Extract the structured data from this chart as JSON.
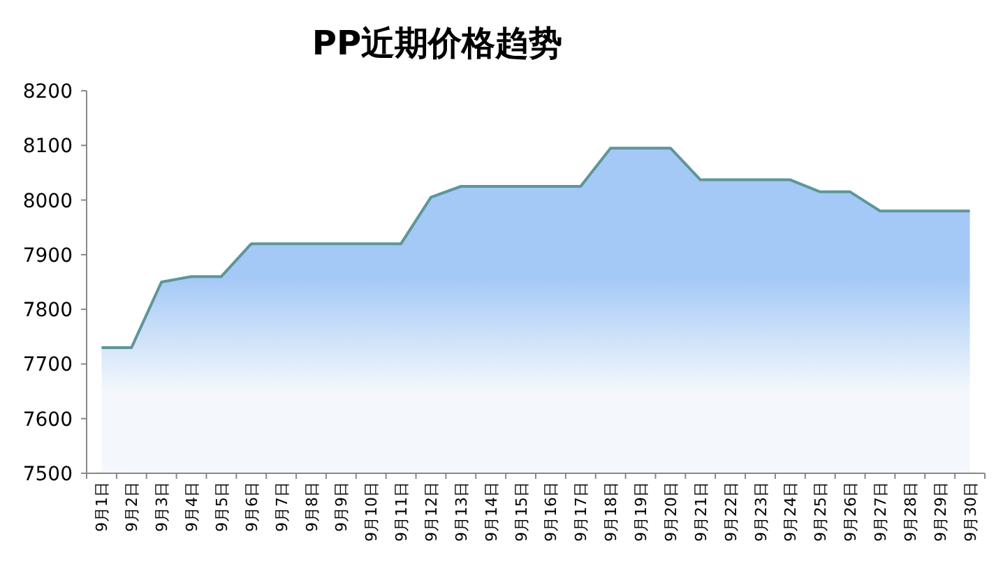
{
  "chart_data": {
    "type": "area",
    "title": "PP近期价格趋势",
    "categories": [
      "9月1日",
      "9月2日",
      "9月3日",
      "9月4日",
      "9月5日",
      "9月6日",
      "9月7日",
      "9月8日",
      "9月9日",
      "9月10日",
      "9月11日",
      "9月12日",
      "9月13日",
      "9月14日",
      "9月15日",
      "9月16日",
      "9月17日",
      "9月18日",
      "9月19日",
      "9月20日",
      "9月21日",
      "9月22日",
      "9月23日",
      "9月24日",
      "9月25日",
      "9月26日",
      "9月27日",
      "9月28日",
      "9月29日",
      "9月30日"
    ],
    "values": [
      7730,
      7730,
      7850,
      7860,
      7860,
      7920,
      7920,
      7920,
      7920,
      7920,
      7920,
      8005,
      8025,
      8025,
      8025,
      8025,
      8025,
      8095,
      8095,
      8095,
      8037,
      8037,
      8037,
      8037,
      8015,
      8015,
      7980,
      7980,
      7980,
      7980
    ],
    "color": "#a5c9f6",
    "ylim": [
      7500,
      8200
    ],
    "yticks": [
      7500,
      7600,
      7700,
      7800,
      7900,
      8000,
      8100,
      8200
    ],
    "grid": false
  }
}
